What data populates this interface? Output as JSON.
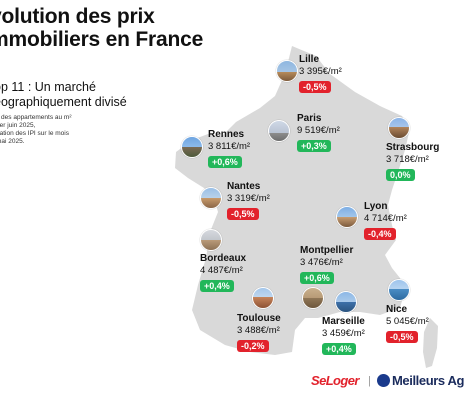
{
  "title_line1": "volution des prix",
  "title_line2": "mmobiliers en France",
  "subtitle_line1": "op 11 : Un marché",
  "subtitle_line2": "éographiquement divisé",
  "note_lines": [
    "x des appartements au m²",
    "1er juin 2025,",
    "riation des IPI sur le mois",
    "mai 2025."
  ],
  "cities": [
    {
      "id": "lille",
      "name": "Lille",
      "price": "3 395€/m²",
      "change": "-0,5%",
      "trend": "down"
    },
    {
      "id": "paris",
      "name": "Paris",
      "price": "9 519€/m²",
      "change": "+0,3%",
      "trend": "up"
    },
    {
      "id": "rennes",
      "name": "Rennes",
      "price": "3 811€/m²",
      "change": "+0,6%",
      "trend": "up"
    },
    {
      "id": "strasbourg",
      "name": "Strasbourg",
      "price": "3 718€/m²",
      "change": "0,0%",
      "trend": "up"
    },
    {
      "id": "nantes",
      "name": "Nantes",
      "price": "3 319€/m²",
      "change": "-0,5%",
      "trend": "down"
    },
    {
      "id": "lyon",
      "name": "Lyon",
      "price": "4 714€/m²",
      "change": "-0,4%",
      "trend": "down"
    },
    {
      "id": "bordeaux",
      "name": "Bordeaux",
      "price": "4 487€/m²",
      "change": "+0,4%",
      "trend": "up"
    },
    {
      "id": "montpellier",
      "name": "Montpellier",
      "price": "3 476€/m²",
      "change": "+0,6%",
      "trend": "up"
    },
    {
      "id": "toulouse",
      "name": "Toulouse",
      "price": "3 488€/m²",
      "change": "-0,2%",
      "trend": "down"
    },
    {
      "id": "marseille",
      "name": "Marseille",
      "price": "3 459€/m²",
      "change": "+0,4%",
      "trend": "up"
    },
    {
      "id": "nice",
      "name": "Nice",
      "price": "5 045€/m²",
      "change": "-0,5%",
      "trend": "down"
    }
  ],
  "footer": {
    "brand1": "SeLoger",
    "separator": "|",
    "brand2": "Meilleurs Ag"
  },
  "colors": {
    "up": "#22b75a",
    "down": "#e2222c",
    "map": "#d9d9d9"
  }
}
